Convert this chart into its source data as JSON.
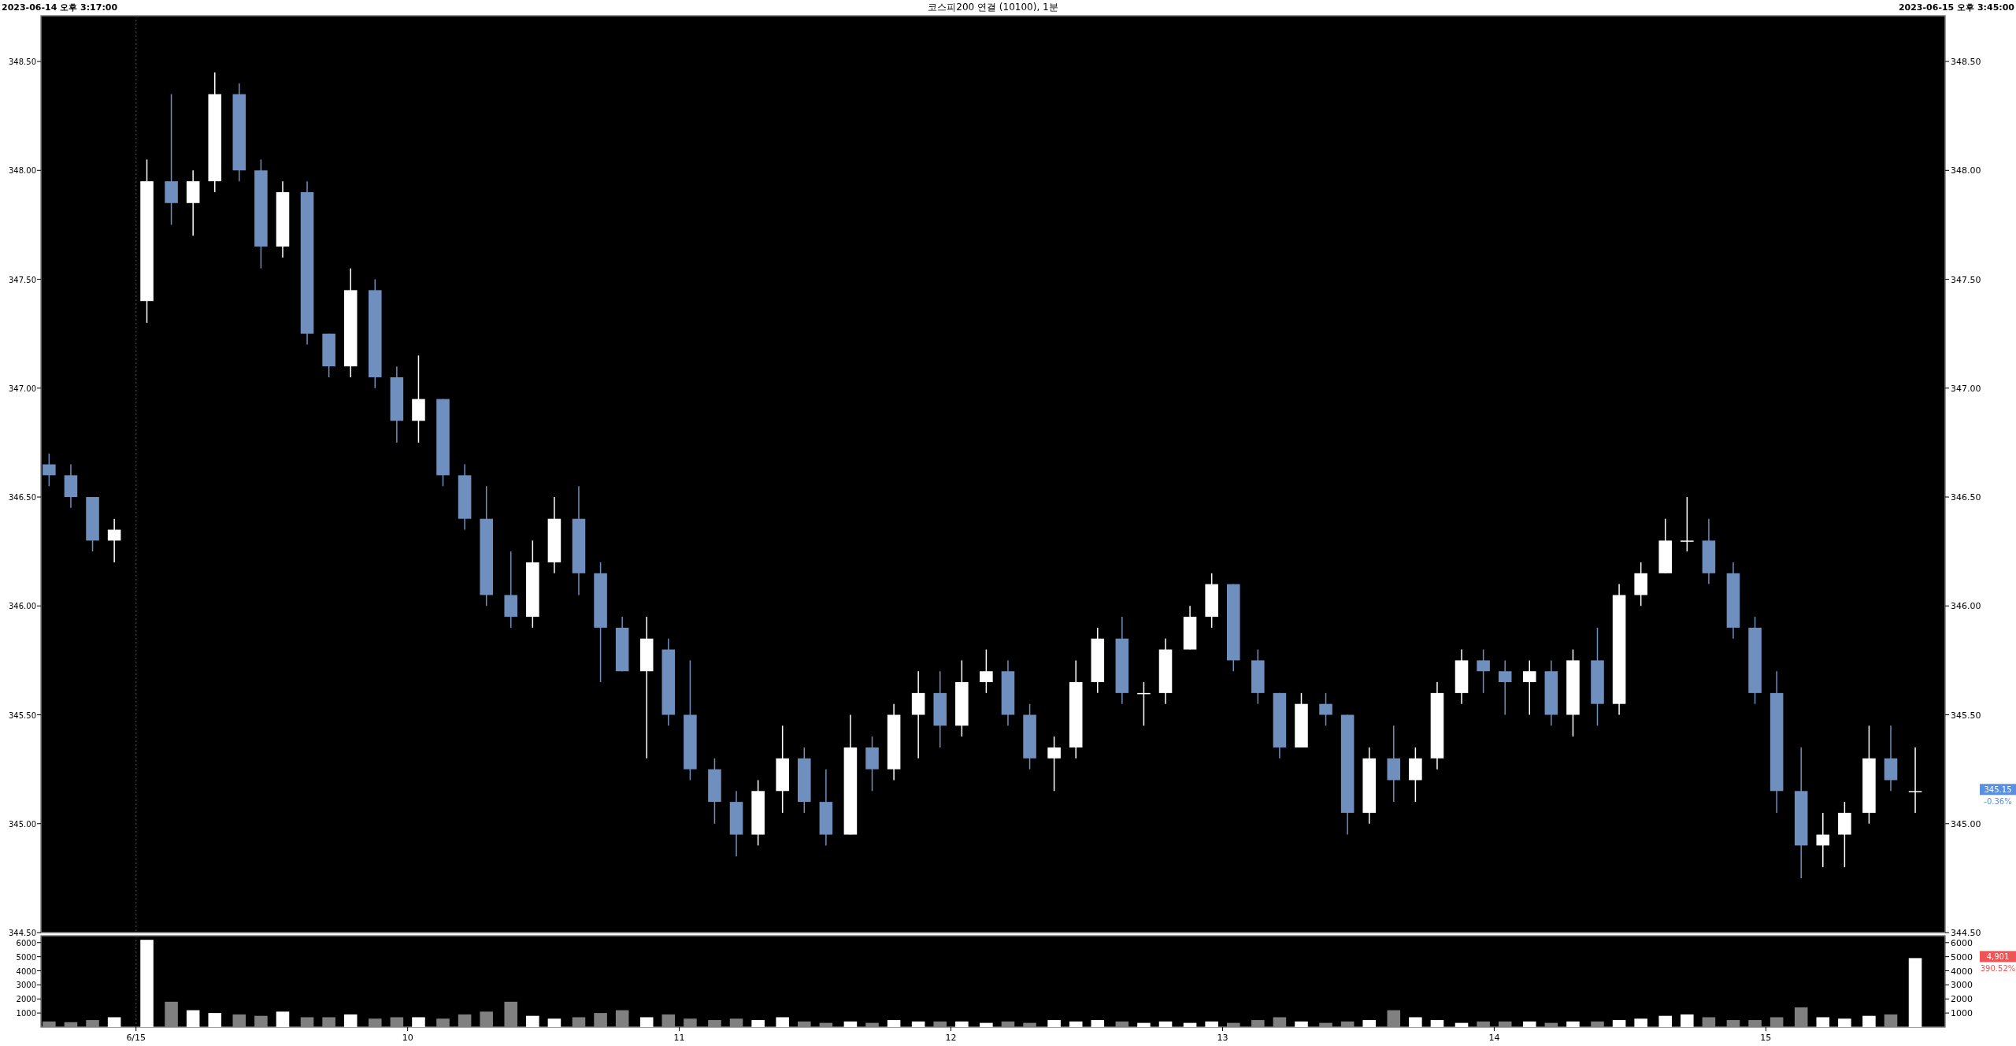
{
  "chart_data": [
    {
      "type": "candlestick",
      "title": "코스피200 연결 (10100), 1분",
      "annotations": [
        "2023-06-14 오후 3:17:00",
        "2023-06-15 오후 3:45:00",
        "345.15",
        "-0.36%"
      ],
      "x": [
        8.68,
        8.76,
        8.84,
        8.92,
        9.04,
        9.13,
        9.21,
        9.29,
        9.38,
        9.46,
        9.54,
        9.63,
        9.71,
        9.79,
        9.88,
        9.96,
        10.04,
        10.13,
        10.21,
        10.29,
        10.38,
        10.46,
        10.54,
        10.63,
        10.71,
        10.79,
        10.88,
        10.96,
        11.04,
        11.13,
        11.21,
        11.29,
        11.38,
        11.46,
        11.54,
        11.63,
        11.71,
        11.79,
        11.88,
        11.96,
        12.04,
        12.13,
        12.21,
        12.29,
        12.38,
        12.46,
        12.54,
        12.63,
        12.71,
        12.79,
        12.88,
        12.96,
        13.04,
        13.13,
        13.21,
        13.29,
        13.38,
        13.46,
        13.54,
        13.63,
        13.71,
        13.79,
        13.88,
        13.96,
        14.04,
        14.13,
        14.21,
        14.29,
        14.38,
        14.46,
        14.54,
        14.63,
        14.71,
        14.79,
        14.88,
        14.96,
        15.04,
        15.13,
        15.21,
        15.29,
        15.38,
        15.46,
        15.55
      ],
      "ohlc": [
        [
          346.65,
          346.7,
          346.55,
          346.6
        ],
        [
          346.6,
          346.65,
          346.45,
          346.5
        ],
        [
          346.5,
          346.5,
          346.25,
          346.3
        ],
        [
          346.3,
          346.4,
          346.2,
          346.35
        ],
        [
          347.4,
          348.05,
          347.3,
          347.95
        ],
        [
          347.95,
          348.35,
          347.75,
          347.85
        ],
        [
          347.85,
          348.0,
          347.7,
          347.95
        ],
        [
          347.95,
          348.45,
          347.9,
          348.35
        ],
        [
          348.35,
          348.4,
          347.95,
          348.0
        ],
        [
          348.0,
          348.05,
          347.55,
          347.65
        ],
        [
          347.65,
          347.95,
          347.6,
          347.9
        ],
        [
          347.9,
          347.95,
          347.2,
          347.25
        ],
        [
          347.25,
          347.25,
          347.05,
          347.1
        ],
        [
          347.1,
          347.55,
          347.05,
          347.45
        ],
        [
          347.45,
          347.5,
          347.0,
          347.05
        ],
        [
          347.05,
          347.1,
          346.75,
          346.85
        ],
        [
          346.85,
          347.15,
          346.75,
          346.95
        ],
        [
          346.95,
          346.95,
          346.55,
          346.6
        ],
        [
          346.6,
          346.65,
          346.35,
          346.4
        ],
        [
          346.4,
          346.55,
          346.0,
          346.05
        ],
        [
          346.05,
          346.25,
          345.9,
          345.95
        ],
        [
          345.95,
          346.3,
          345.9,
          346.2
        ],
        [
          346.2,
          346.5,
          346.15,
          346.4
        ],
        [
          346.4,
          346.55,
          346.05,
          346.15
        ],
        [
          346.15,
          346.2,
          345.65,
          345.9
        ],
        [
          345.9,
          345.95,
          345.7,
          345.7
        ],
        [
          345.7,
          345.95,
          345.3,
          345.85
        ],
        [
          345.8,
          345.85,
          345.45,
          345.5
        ],
        [
          345.5,
          345.75,
          345.2,
          345.25
        ],
        [
          345.25,
          345.3,
          345.0,
          345.1
        ],
        [
          345.1,
          345.15,
          344.85,
          344.95
        ],
        [
          344.95,
          345.2,
          344.9,
          345.15
        ],
        [
          345.15,
          345.45,
          345.05,
          345.3
        ],
        [
          345.3,
          345.35,
          345.05,
          345.1
        ],
        [
          345.1,
          345.25,
          344.9,
          344.95
        ],
        [
          344.95,
          345.5,
          344.95,
          345.35
        ],
        [
          345.35,
          345.4,
          345.15,
          345.25
        ],
        [
          345.25,
          345.55,
          345.2,
          345.5
        ],
        [
          345.5,
          345.7,
          345.3,
          345.6
        ],
        [
          345.6,
          345.7,
          345.35,
          345.45
        ],
        [
          345.45,
          345.75,
          345.4,
          345.65
        ],
        [
          345.65,
          345.8,
          345.6,
          345.7
        ],
        [
          345.7,
          345.75,
          345.45,
          345.5
        ],
        [
          345.5,
          345.55,
          345.25,
          345.3
        ],
        [
          345.3,
          345.4,
          345.15,
          345.35
        ],
        [
          345.35,
          345.75,
          345.3,
          345.65
        ],
        [
          345.65,
          345.9,
          345.6,
          345.85
        ],
        [
          345.85,
          345.95,
          345.55,
          345.6
        ],
        [
          345.6,
          345.65,
          345.45,
          345.6
        ],
        [
          345.6,
          345.85,
          345.55,
          345.8
        ],
        [
          345.8,
          346.0,
          345.8,
          345.95
        ],
        [
          345.95,
          346.15,
          345.9,
          346.1
        ],
        [
          346.1,
          346.1,
          345.7,
          345.75
        ],
        [
          345.75,
          345.8,
          345.55,
          345.6
        ],
        [
          345.6,
          345.6,
          345.3,
          345.35
        ],
        [
          345.35,
          345.6,
          345.35,
          345.55
        ],
        [
          345.55,
          345.6,
          345.45,
          345.5
        ],
        [
          345.5,
          345.5,
          344.95,
          345.05
        ],
        [
          345.05,
          345.35,
          345.0,
          345.3
        ],
        [
          345.3,
          345.45,
          345.1,
          345.2
        ],
        [
          345.2,
          345.35,
          345.1,
          345.3
        ],
        [
          345.3,
          345.65,
          345.25,
          345.6
        ],
        [
          345.6,
          345.8,
          345.55,
          345.75
        ],
        [
          345.75,
          345.8,
          345.6,
          345.7
        ],
        [
          345.7,
          345.75,
          345.5,
          345.65
        ],
        [
          345.65,
          345.75,
          345.5,
          345.7
        ],
        [
          345.7,
          345.75,
          345.45,
          345.5
        ],
        [
          345.5,
          345.8,
          345.4,
          345.75
        ],
        [
          345.75,
          345.9,
          345.45,
          345.55
        ],
        [
          345.55,
          346.1,
          345.5,
          346.05
        ],
        [
          346.05,
          346.2,
          346.0,
          346.15
        ],
        [
          346.15,
          346.4,
          346.15,
          346.3
        ],
        [
          346.3,
          346.5,
          346.25,
          346.3
        ],
        [
          346.3,
          346.4,
          346.1,
          346.15
        ],
        [
          346.15,
          346.2,
          345.85,
          345.9
        ],
        [
          345.9,
          345.95,
          345.55,
          345.6
        ],
        [
          345.6,
          345.7,
          345.05,
          345.15
        ],
        [
          345.15,
          345.35,
          344.75,
          344.9
        ],
        [
          344.9,
          345.05,
          344.8,
          344.95
        ],
        [
          344.95,
          345.1,
          344.8,
          345.05
        ],
        [
          345.05,
          345.45,
          345.0,
          345.3
        ],
        [
          345.3,
          345.45,
          345.15,
          345.2
        ],
        [
          345.15,
          345.35,
          345.05,
          345.15
        ]
      ],
      "colors": [
        "#6f8fbf",
        "#6f8fbf",
        "#6f8fbf",
        "#ffffff",
        "#ffffff",
        "#6f8fbf",
        "#ffffff",
        "#ffffff",
        "#6f8fbf",
        "#6f8fbf",
        "#ffffff",
        "#6f8fbf",
        "#6f8fbf",
        "#ffffff",
        "#6f8fbf",
        "#6f8fbf",
        "#ffffff",
        "#6f8fbf",
        "#6f8fbf",
        "#6f8fbf",
        "#6f8fbf",
        "#ffffff",
        "#ffffff",
        "#6f8fbf",
        "#6f8fbf",
        "#6f8fbf",
        "#ffffff",
        "#6f8fbf",
        "#6f8fbf",
        "#6f8fbf",
        "#6f8fbf",
        "#ffffff",
        "#ffffff",
        "#6f8fbf",
        "#6f8fbf",
        "#ffffff",
        "#6f8fbf",
        "#ffffff",
        "#ffffff",
        "#6f8fbf",
        "#ffffff",
        "#ffffff",
        "#6f8fbf",
        "#6f8fbf",
        "#ffffff",
        "#ffffff",
        "#ffffff",
        "#6f8fbf",
        "#ffffff",
        "#ffffff",
        "#ffffff",
        "#ffffff",
        "#6f8fbf",
        "#6f8fbf",
        "#6f8fbf",
        "#ffffff",
        "#6f8fbf",
        "#6f8fbf",
        "#ffffff",
        "#6f8fbf",
        "#ffffff",
        "#ffffff",
        "#ffffff",
        "#6f8fbf",
        "#6f8fbf",
        "#ffffff",
        "#6f8fbf",
        "#ffffff",
        "#6f8fbf",
        "#ffffff",
        "#ffffff",
        "#ffffff",
        "#ffffff",
        "#6f8fbf",
        "#6f8fbf",
        "#6f8fbf",
        "#6f8fbf",
        "#6f8fbf",
        "#ffffff",
        "#ffffff",
        "#ffffff",
        "#6f8fbf",
        "#ffffff"
      ],
      "xlim": [
        8.65,
        15.66
      ],
      "ylim": [
        344.5,
        348.71
      ],
      "yticks": [
        {
          "value": 344.5,
          "label": "344.50"
        },
        {
          "value": 345,
          "label": "345.00"
        },
        {
          "value": 345.5,
          "label": "345.50"
        },
        {
          "value": 346,
          "label": "346.00"
        },
        {
          "value": 346.5,
          "label": "346.50"
        },
        {
          "value": 347,
          "label": "347.00"
        },
        {
          "value": 347.5,
          "label": "347.50"
        },
        {
          "value": 348,
          "label": "348.00"
        },
        {
          "value": 348.5,
          "label": "348.50"
        }
      ],
      "y2lim": [
        344.5,
        348.71
      ],
      "y2ticks": [
        {
          "value": 344.5,
          "label": "344.50"
        },
        {
          "value": 345,
          "label": "345.00"
        },
        {
          "value": 345.5,
          "label": "345.50"
        },
        {
          "value": 346,
          "label": "346.00"
        },
        {
          "value": 346.5,
          "label": "346.50"
        },
        {
          "value": 347,
          "label": "347.00"
        },
        {
          "value": 347.5,
          "label": "347.50"
        },
        {
          "value": 348,
          "label": "348.00"
        },
        {
          "value": 348.5,
          "label": "348.50"
        }
      ],
      "ref_lines": [
        {
          "axis": "x",
          "value": 9,
          "color": "#3a3a3a",
          "line_style": "dotted"
        }
      ],
      "tick_labels": "y",
      "grid": false
    },
    {
      "type": "bar",
      "annotations": [
        "4,901",
        "390.52%"
      ],
      "x": [
        8.68,
        8.76,
        8.84,
        8.92,
        9.04,
        9.13,
        9.21,
        9.29,
        9.38,
        9.46,
        9.54,
        9.63,
        9.71,
        9.79,
        9.88,
        9.96,
        10.04,
        10.13,
        10.21,
        10.29,
        10.38,
        10.46,
        10.54,
        10.63,
        10.71,
        10.79,
        10.88,
        10.96,
        11.04,
        11.13,
        11.21,
        11.29,
        11.38,
        11.46,
        11.54,
        11.63,
        11.71,
        11.79,
        11.88,
        11.96,
        12.04,
        12.13,
        12.21,
        12.29,
        12.38,
        12.46,
        12.54,
        12.63,
        12.71,
        12.79,
        12.88,
        12.96,
        13.04,
        13.13,
        13.21,
        13.29,
        13.38,
        13.46,
        13.54,
        13.63,
        13.71,
        13.79,
        13.88,
        13.96,
        14.04,
        14.13,
        14.21,
        14.29,
        14.38,
        14.46,
        14.54,
        14.63,
        14.71,
        14.79,
        14.88,
        14.96,
        15.04,
        15.13,
        15.21,
        15.29,
        15.38,
        15.46,
        15.55
      ],
      "values": [
        400,
        350,
        500,
        700,
        6200,
        1800,
        1200,
        1000,
        900,
        800,
        1100,
        700,
        700,
        900,
        600,
        700,
        700,
        600,
        900,
        1100,
        1800,
        800,
        600,
        700,
        1000,
        1200,
        700,
        900,
        600,
        500,
        600,
        500,
        700,
        400,
        300,
        400,
        300,
        500,
        400,
        400,
        400,
        300,
        400,
        300,
        500,
        400,
        500,
        400,
        300,
        400,
        300,
        400,
        300,
        500,
        700,
        400,
        300,
        400,
        500,
        1200,
        700,
        500,
        300,
        400,
        400,
        400,
        300,
        400,
        400,
        500,
        600,
        800,
        900,
        700,
        500,
        500,
        700,
        1400,
        700,
        600,
        800,
        900,
        4901
      ],
      "colors": [
        "#808080",
        "#808080",
        "#808080",
        "#ffffff",
        "#ffffff",
        "#808080",
        "#ffffff",
        "#ffffff",
        "#808080",
        "#808080",
        "#ffffff",
        "#808080",
        "#808080",
        "#ffffff",
        "#808080",
        "#808080",
        "#ffffff",
        "#808080",
        "#808080",
        "#808080",
        "#808080",
        "#ffffff",
        "#ffffff",
        "#808080",
        "#808080",
        "#808080",
        "#ffffff",
        "#808080",
        "#808080",
        "#808080",
        "#808080",
        "#ffffff",
        "#ffffff",
        "#808080",
        "#808080",
        "#ffffff",
        "#808080",
        "#ffffff",
        "#ffffff",
        "#808080",
        "#ffffff",
        "#ffffff",
        "#808080",
        "#808080",
        "#ffffff",
        "#ffffff",
        "#ffffff",
        "#808080",
        "#ffffff",
        "#ffffff",
        "#ffffff",
        "#ffffff",
        "#808080",
        "#808080",
        "#808080",
        "#ffffff",
        "#808080",
        "#808080",
        "#ffffff",
        "#808080",
        "#ffffff",
        "#ffffff",
        "#ffffff",
        "#808080",
        "#808080",
        "#ffffff",
        "#808080",
        "#ffffff",
        "#808080",
        "#ffffff",
        "#ffffff",
        "#ffffff",
        "#ffffff",
        "#808080",
        "#808080",
        "#808080",
        "#808080",
        "#808080",
        "#ffffff",
        "#ffffff",
        "#ffffff",
        "#808080",
        "#ffffff"
      ],
      "xlim": [
        8.65,
        15.66
      ],
      "ylim": [
        0,
        6490
      ],
      "xticks": [
        {
          "value": 9,
          "label": "6/15"
        },
        10,
        11,
        12,
        13,
        14,
        15
      ],
      "yticks": [
        1000,
        2000,
        3000,
        4000,
        5000,
        6000
      ],
      "y2lim": [
        0,
        6490
      ],
      "y2ticks": [
        1000,
        2000,
        3000,
        4000,
        5000,
        6000
      ],
      "ref_lines": [
        {
          "axis": "x",
          "value": 9,
          "color": "#3a3a3a",
          "line_style": "dotted"
        }
      ],
      "grid": false
    }
  ]
}
